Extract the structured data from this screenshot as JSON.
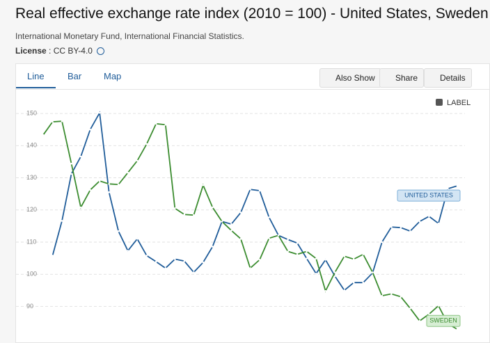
{
  "page": {
    "subtitle": "International Monetary Fund, International Financial Statistics.",
    "license_label": "License",
    "license_value": ": CC BY-4.0",
    "tabs": [
      "Line",
      "Bar",
      "Map"
    ],
    "buttons": [
      "Also Show",
      "Share",
      "Details"
    ],
    "label_toggle": "LABEL"
  },
  "chart_data": {
    "type": "line",
    "title": "Real effective exchange rate index (2010 = 100) - United States, Sweden",
    "categories": [
      null,
      null,
      null,
      null,
      null,
      null,
      null,
      null,
      null,
      null,
      null,
      null,
      null,
      null,
      null,
      null,
      null,
      null,
      null,
      null,
      null,
      null,
      null,
      null,
      null,
      null,
      null,
      null,
      null,
      null,
      null,
      null,
      null,
      null,
      null,
      null,
      null,
      null,
      null,
      null,
      null,
      null,
      null,
      null,
      null
    ],
    "series": [
      {
        "name": "UNITED STATES",
        "color": "#1f5c99",
        "label_fill": "#d3e5f4",
        "label_stroke": "#7fb0d8",
        "values": [
          null,
          105.8,
          116.6,
          131.2,
          136.6,
          145.0,
          150.2,
          125.5,
          113.4,
          107.3,
          111.0,
          105.8,
          103.9,
          101.9,
          104.7,
          104.1,
          100.6,
          103.7,
          108.6,
          116.4,
          115.6,
          119.2,
          126.4,
          126.0,
          117.7,
          112.1,
          110.8,
          109.7,
          104.9,
          100.2,
          104.5,
          99.4,
          95.0,
          97.4,
          97.4,
          100.4,
          110.0,
          114.7,
          114.5,
          113.4,
          116.4,
          118.0,
          115.8,
          126.6,
          127.5
        ]
      },
      {
        "name": "SWEDEN",
        "color": "#3b8c2f",
        "label_fill": "#d7eed4",
        "label_stroke": "#8cc483",
        "values": [
          143.3,
          147.4,
          147.6,
          134.4,
          120.8,
          126.2,
          129.0,
          128.1,
          127.9,
          131.6,
          135.3,
          140.5,
          146.8,
          146.5,
          120.5,
          118.6,
          118.4,
          127.7,
          120.8,
          116.4,
          113.6,
          111.0,
          101.9,
          104.5,
          111.2,
          112.1,
          107.1,
          106.2,
          107.1,
          104.9,
          94.8,
          100.6,
          105.6,
          104.7,
          106.2,
          100.6,
          93.3,
          93.9,
          93.0,
          89.4,
          85.5,
          87.6,
          90.2,
          84.6,
          82.9
        ]
      }
    ],
    "ylim": [
      81,
      155
    ],
    "yticks": [
      90,
      100,
      110,
      120,
      130,
      140,
      150
    ],
    "grid": true
  }
}
